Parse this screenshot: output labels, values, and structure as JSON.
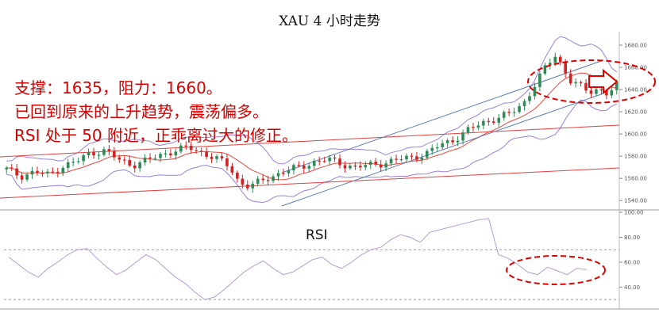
{
  "title": "XAU 4 小时走势",
  "annotations": {
    "line1": "支撑：1635，阻力：1660。",
    "line2": "已回到原来的上升趋势，震荡偏多。",
    "line3": "RSI 处于 50 附近，正乖离过大的修正。"
  },
  "colors": {
    "bull": "#2e8b57",
    "bear": "#d42020",
    "ma_red": "#e8473b",
    "bollinger": "#9b7fd9",
    "trend_blue": "#5a7ab8",
    "trend_red": "#e04040",
    "rsi": "#b79ad3",
    "highlight": "#e00000"
  },
  "chart_data": [
    {
      "type": "candlestick",
      "title": "XAU 4 小时走势",
      "ylim": [
        1533,
        1690
      ],
      "yticks": [
        "1540.00",
        "1560.00",
        "1580.00",
        "1600.00",
        "1620.00",
        "1640.00",
        "1660.00",
        "1680.00"
      ],
      "ytick_values": [
        1540,
        1560,
        1580,
        1600,
        1620,
        1640,
        1660,
        1680
      ],
      "support": 1635,
      "resistance": 1660,
      "close_path": [
        [
          0,
          1568
        ],
        [
          6,
          1562
        ],
        [
          12,
          1566
        ],
        [
          18,
          1563
        ],
        [
          24,
          1571
        ],
        [
          30,
          1575
        ],
        [
          36,
          1583
        ],
        [
          42,
          1585
        ],
        [
          48,
          1577
        ],
        [
          54,
          1572
        ],
        [
          60,
          1576
        ],
        [
          66,
          1581
        ],
        [
          72,
          1585
        ],
        [
          78,
          1588
        ],
        [
          84,
          1583
        ],
        [
          90,
          1578
        ],
        [
          96,
          1570
        ],
        [
          100,
          1556
        ],
        [
          104,
          1553
        ],
        [
          108,
          1556
        ],
        [
          114,
          1562
        ],
        [
          120,
          1567
        ],
        [
          126,
          1570
        ],
        [
          132,
          1575
        ],
        [
          138,
          1577
        ],
        [
          144,
          1573
        ],
        [
          150,
          1570
        ],
        [
          156,
          1572
        ],
        [
          162,
          1574
        ],
        [
          168,
          1577
        ],
        [
          174,
          1579
        ],
        [
          180,
          1582
        ],
        [
          186,
          1590
        ],
        [
          192,
          1595
        ],
        [
          198,
          1603
        ],
        [
          204,
          1610
        ],
        [
          210,
          1614
        ],
        [
          216,
          1618
        ],
        [
          222,
          1628
        ],
        [
          228,
          1648
        ],
        [
          232,
          1662
        ],
        [
          236,
          1672
        ],
        [
          238,
          1663
        ],
        [
          242,
          1648
        ],
        [
          246,
          1643
        ],
        [
          250,
          1638
        ],
        [
          254,
          1641
        ],
        [
          258,
          1636
        ],
        [
          262,
          1643
        ]
      ]
    },
    {
      "type": "line",
      "title": "RSI",
      "ylim": [
        25,
        100
      ],
      "yticks": [
        "40.00",
        "60.00",
        "80.00",
        "100.00"
      ],
      "ytick_values": [
        40,
        60,
        80,
        100
      ],
      "reference_lines": [
        30,
        70
      ],
      "series": [
        {
          "values": [
            64,
            58,
            52,
            48,
            55,
            60,
            66,
            70,
            71,
            63,
            56,
            50,
            54,
            60,
            66,
            62,
            55,
            48,
            43,
            36,
            30,
            32,
            38,
            45,
            52,
            57,
            61,
            55,
            50,
            52,
            57,
            62,
            64,
            58,
            55,
            60,
            66,
            70,
            72,
            78,
            82,
            80,
            76,
            84,
            86,
            88,
            90,
            92,
            94,
            95,
            66,
            63,
            58,
            52,
            50,
            56,
            53,
            50,
            55,
            54
          ]
        }
      ]
    }
  ]
}
